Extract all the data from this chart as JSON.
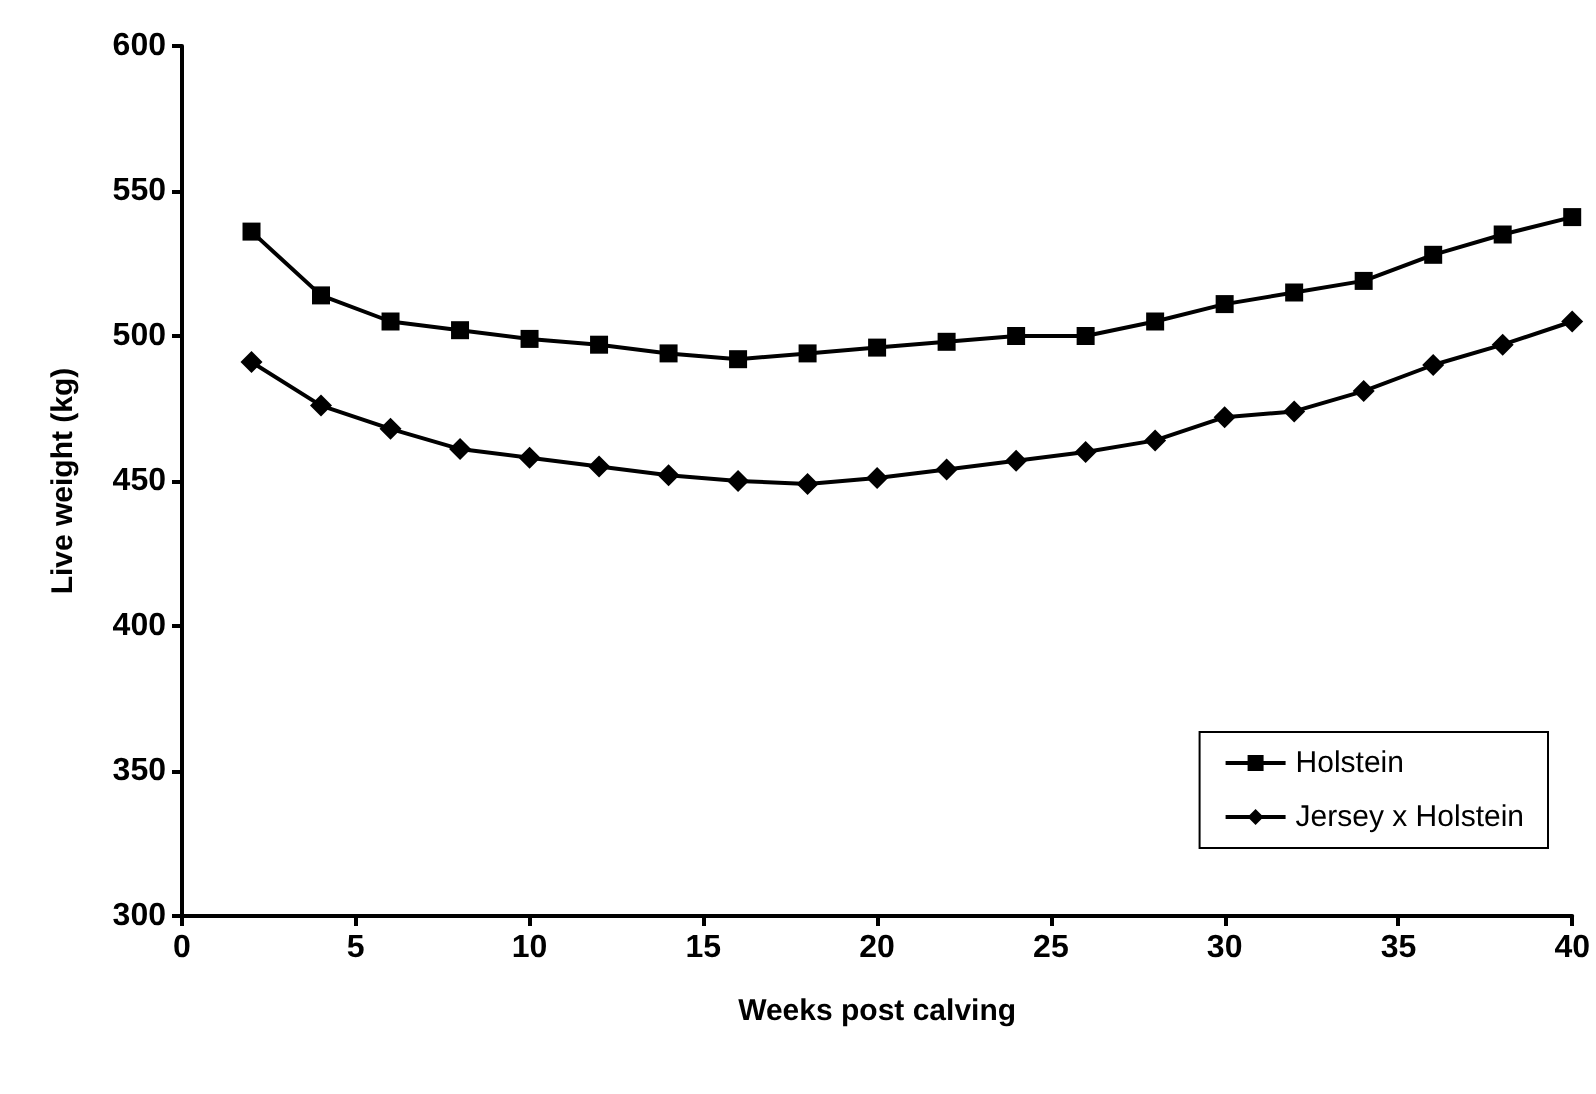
{
  "chart_data": {
    "type": "line",
    "xlabel": "Weeks post calving",
    "ylabel": "Live weight (kg)",
    "x": [
      2,
      4,
      6,
      8,
      10,
      12,
      14,
      16,
      18,
      20,
      22,
      24,
      26,
      28,
      30,
      32,
      34,
      36,
      38,
      40
    ],
    "series": [
      {
        "name": "Holstein",
        "color": "#000000",
        "marker": "square",
        "values": [
          536,
          514,
          505,
          502,
          499,
          497,
          494,
          492,
          494,
          496,
          498,
          500,
          500,
          505,
          511,
          515,
          519,
          528,
          535,
          541
        ]
      },
      {
        "name": "Jersey x Holstein",
        "color": "#000000",
        "marker": "diamond",
        "values": [
          491,
          476,
          468,
          461,
          458,
          455,
          452,
          450,
          449,
          451,
          454,
          457,
          460,
          464,
          472,
          474,
          481,
          490,
          497,
          505
        ]
      }
    ],
    "xlim": [
      0,
      40
    ],
    "xticks": [
      0,
      5,
      10,
      15,
      20,
      25,
      30,
      35,
      40
    ],
    "ylim": [
      300,
      600
    ],
    "yticks": [
      300,
      350,
      400,
      450,
      500,
      550,
      600
    ],
    "grid": false,
    "legend": "bottom right",
    "line_style": "solid"
  }
}
